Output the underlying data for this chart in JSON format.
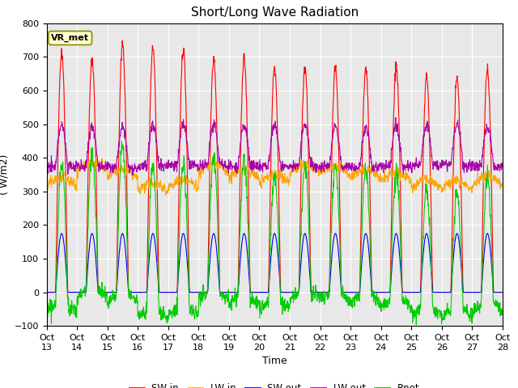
{
  "title": "Short/Long Wave Radiation",
  "xlabel": "Time",
  "ylabel": "( W/m2)",
  "ylim": [
    -100,
    800
  ],
  "yticks": [
    -100,
    0,
    100,
    200,
    300,
    400,
    500,
    600,
    700,
    800
  ],
  "xtick_labels": [
    "Oct\n13",
    "Oct\n14",
    "Oct\n15",
    "Oct\n16",
    "Oct\n17",
    "Oct\n18",
    "Oct\n19",
    "Oct\n20",
    "Oct\n21",
    "Oct\n22",
    "Oct\n23",
    "Oct\n24",
    "Oct\n25",
    "Oct\n26",
    "Oct\n27",
    "Oct\n28"
  ],
  "colors": {
    "SW_in": "#ff0000",
    "LW_in": "#ffa500",
    "SW_out": "#0000ee",
    "LW_out": "#aa00aa",
    "Rnet": "#00cc00"
  },
  "legend_labels": [
    "SW in",
    "LW in",
    "SW out",
    "LW out",
    "Rnet"
  ],
  "annotation_text": "VR_met",
  "n_days": 15,
  "points_per_day": 96,
  "background_color": "#e8e8e8",
  "grid_color": "#ffffff",
  "title_fontsize": 11,
  "label_fontsize": 9,
  "tick_fontsize": 8
}
